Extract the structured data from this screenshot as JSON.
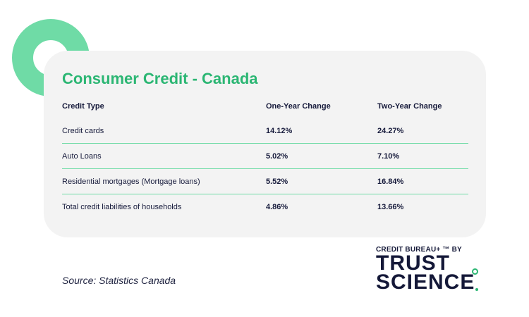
{
  "title": "Consumer Credit - Canada",
  "table": {
    "headers": [
      "Credit Type",
      "One-Year Change",
      "Two-Year Change"
    ],
    "rows": [
      [
        "Credit cards",
        "14.12%",
        "24.27%"
      ],
      [
        "Auto Loans",
        "5.02%",
        "7.10%"
      ],
      [
        "Residential mortgages (Mortgage loans)",
        "5.52%",
        "16.84%"
      ],
      [
        "Total credit liabilities of households",
        "4.86%",
        "13.66%"
      ]
    ]
  },
  "source": "Source: Statistics Canada",
  "logo": {
    "tagline": "CREDIT BUREAU+ ™ BY",
    "line1": "TRUST",
    "line2": "SCIENCE"
  },
  "colors": {
    "accent": "#2bb673",
    "ring": "#6fdba6",
    "card": "#f3f3f3",
    "text": "#161a3b"
  }
}
